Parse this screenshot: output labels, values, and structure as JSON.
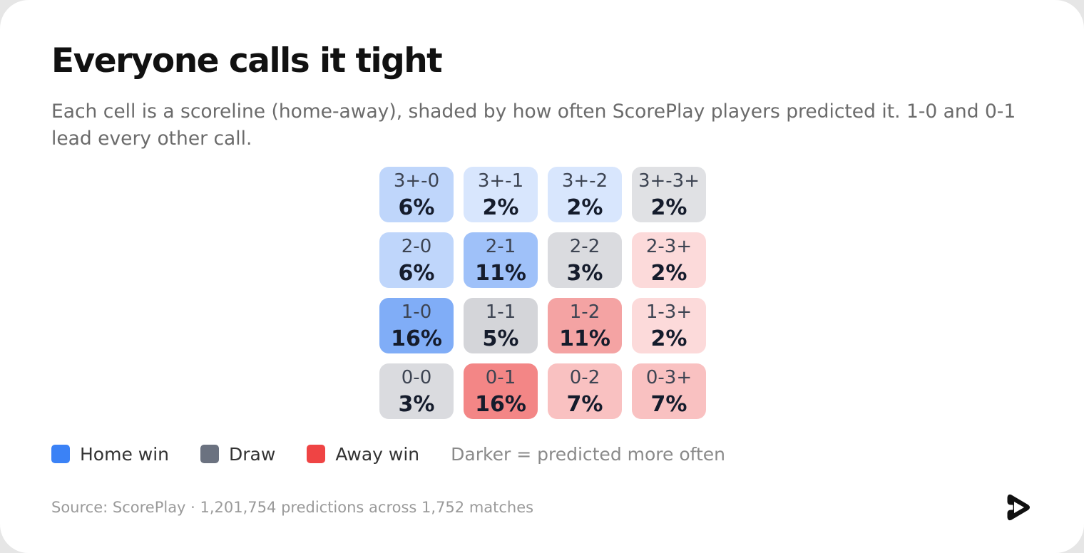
{
  "header": {
    "title": "Everyone calls it tight",
    "subtitle": "Each cell is a scoreline (home-away), shaded by how often ScorePlay players predicted it. 1-0 and 0-1 lead every other call."
  },
  "colors": {
    "home": "#3b82f6",
    "draw": "#6b7280",
    "away": "#ef4444"
  },
  "chart_data": {
    "type": "heatmap",
    "rows": [
      "3+",
      "2",
      "1",
      "0"
    ],
    "columns": [
      "0",
      "1",
      "2",
      "3+"
    ],
    "cells": [
      [
        {
          "label": "3+-0",
          "value": 6,
          "display": "6%",
          "outcome": "home"
        },
        {
          "label": "3+-1",
          "value": 2,
          "display": "2%",
          "outcome": "home"
        },
        {
          "label": "3+-2",
          "value": 2,
          "display": "2%",
          "outcome": "home"
        },
        {
          "label": "3+-3+",
          "value": 2,
          "display": "2%",
          "outcome": "draw"
        }
      ],
      [
        {
          "label": "2-0",
          "value": 6,
          "display": "6%",
          "outcome": "home"
        },
        {
          "label": "2-1",
          "value": 11,
          "display": "11%",
          "outcome": "home"
        },
        {
          "label": "2-2",
          "value": 3,
          "display": "3%",
          "outcome": "draw"
        },
        {
          "label": "2-3+",
          "value": 2,
          "display": "2%",
          "outcome": "away"
        }
      ],
      [
        {
          "label": "1-0",
          "value": 16,
          "display": "16%",
          "outcome": "home"
        },
        {
          "label": "1-1",
          "value": 5,
          "display": "5%",
          "outcome": "draw"
        },
        {
          "label": "1-2",
          "value": 11,
          "display": "11%",
          "outcome": "away"
        },
        {
          "label": "1-3+",
          "value": 2,
          "display": "2%",
          "outcome": "away"
        }
      ],
      [
        {
          "label": "0-0",
          "value": 3,
          "display": "3%",
          "outcome": "draw"
        },
        {
          "label": "0-1",
          "value": 16,
          "display": "16%",
          "outcome": "away"
        },
        {
          "label": "0-2",
          "value": 7,
          "display": "7%",
          "outcome": "away"
        },
        {
          "label": "0-3+",
          "value": 7,
          "display": "7%",
          "outcome": "away"
        }
      ]
    ],
    "cell_fills": [
      [
        "#bfd6fb",
        "#d8e6fd",
        "#d8e6fd",
        "#e0e1e4"
      ],
      [
        "#bfd6fb",
        "#9fc1f9",
        "#dadbdf",
        "#fcdada"
      ],
      [
        "#80adf7",
        "#d4d5d9",
        "#f4a3a3",
        "#fcdada"
      ],
      [
        "#dadbdf",
        "#f38686",
        "#f9c1c1",
        "#f9c1c1"
      ]
    ],
    "legend": [
      {
        "label": "Home win",
        "color": "#3b82f6"
      },
      {
        "label": "Draw",
        "color": "#6b7280"
      },
      {
        "label": "Away win",
        "color": "#ef4444"
      }
    ],
    "legend_note": "Darker = predicted more often",
    "legend_position": "bottom-left"
  },
  "footer": {
    "source": "Source: ScorePlay · 1,201,754 predictions across 1,752 matches",
    "logo_icon": "play-logo-icon"
  }
}
